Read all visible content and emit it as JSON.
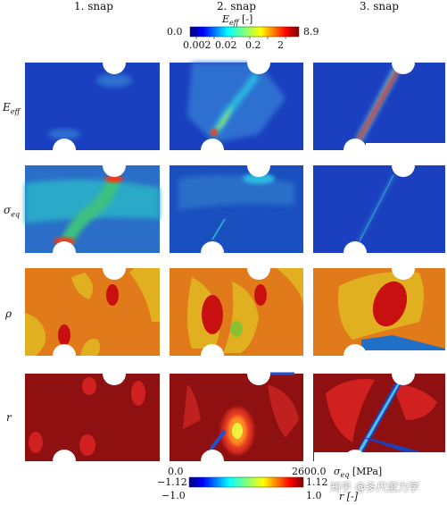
{
  "columns": [
    "1. snap",
    "2. snap",
    "3. snap"
  ],
  "rows": [
    {
      "key": "Eeff",
      "label": "E",
      "sub": "eff"
    },
    {
      "key": "seq",
      "label": "σ",
      "sub": "eq"
    },
    {
      "key": "rho",
      "label": "ρ",
      "sub": ""
    },
    {
      "key": "r",
      "label": "r",
      "sub": ""
    }
  ],
  "top_colorbar": {
    "title": "E",
    "title_sub": "eff",
    "title_unit": "[-]",
    "min": "0.0",
    "max": "8.9",
    "ticks": [
      "0.002",
      "0.02",
      "0.2",
      "2"
    ]
  },
  "bottom_colorbar": {
    "left_top": "0.0",
    "left_mid": "−1.12",
    "left_bot": "−1.0",
    "right_top": "2600.0",
    "right_mid": "1.12",
    "right_bot": "1.0",
    "label_seq": "σ",
    "label_seq_sub": "eq",
    "label_seq_unit": "[MPa]",
    "label_r": "r [-]"
  },
  "watermark": "知乎 @多尺度力学",
  "colors": {
    "eeff_bg": "#1a3fbf",
    "seq_bg": "#2a6ec8",
    "rho_bg": "#e07a1a",
    "r_bg": "#8e1010"
  }
}
